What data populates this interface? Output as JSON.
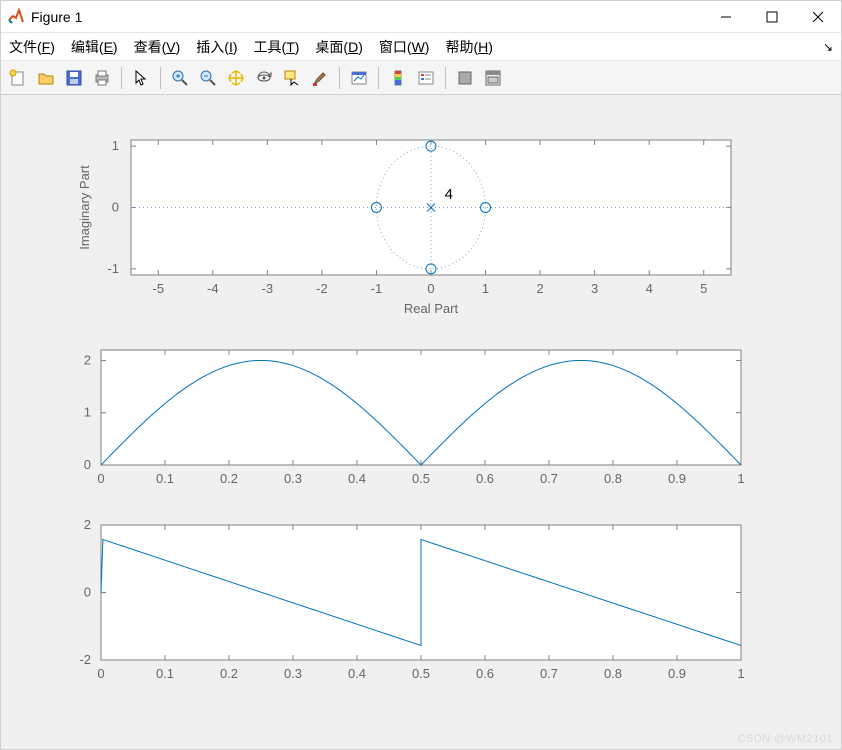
{
  "window": {
    "title": "Figure 1",
    "min_label": "–",
    "max_label": "□",
    "close_label": "×"
  },
  "menubar": {
    "items": [
      {
        "label_pre": "文件(",
        "label_u": "F",
        "label_post": ")"
      },
      {
        "label_pre": "编辑(",
        "label_u": "E",
        "label_post": ")"
      },
      {
        "label_pre": "查看(",
        "label_u": "V",
        "label_post": ")"
      },
      {
        "label_pre": "插入(",
        "label_u": "I",
        "label_post": ")"
      },
      {
        "label_pre": "工具(",
        "label_u": "T",
        "label_post": ")"
      },
      {
        "label_pre": "桌面(",
        "label_u": "D",
        "label_post": ")"
      },
      {
        "label_pre": "窗口(",
        "label_u": "W",
        "label_post": ")"
      },
      {
        "label_pre": "帮助(",
        "label_u": "H",
        "label_post": ")"
      }
    ],
    "overflow_arrow": "↘"
  },
  "toolbar_icons": [
    "new-figure-icon",
    "open-icon",
    "save-icon",
    "print-icon",
    "sep",
    "pointer-icon",
    "sep",
    "zoom-in-icon",
    "zoom-out-icon",
    "pan-icon",
    "rotate3d-icon",
    "data-cursor-icon",
    "brush-icon",
    "sep",
    "link-data-icon",
    "sep",
    "colorbar-icon",
    "legend-icon",
    "sep",
    "hide-tools-icon",
    "dock-icon"
  ],
  "plot_colors": {
    "background": "#f0f0f0",
    "axes_bg": "#ffffff",
    "axis_line": "#808080",
    "axis_text": "#666666",
    "series": "#0072bd",
    "dotted": "#7f9fcf"
  },
  "subplot1": {
    "type": "pole-zero",
    "xlabel": "Real Part",
    "ylabel": "Imaginary Part",
    "xlim": [
      -5.5,
      5.5
    ],
    "ylim": [
      -1.1,
      1.1
    ],
    "xticks": [
      -5,
      -4,
      -3,
      -2,
      -1,
      0,
      1,
      2,
      3,
      4,
      5
    ],
    "yticks": [
      -1,
      0,
      1
    ],
    "unit_circle_radius": 1,
    "zeros": [
      [
        -1,
        0
      ],
      [
        1,
        0
      ],
      [
        0,
        1
      ],
      [
        0,
        -1
      ]
    ],
    "poles": [
      [
        0,
        0
      ]
    ],
    "pole_multiplicity_label": "4",
    "pole_multiplicity_pos": [
      0.25,
      0.2
    ]
  },
  "subplot2": {
    "type": "line",
    "xlim": [
      0,
      1
    ],
    "ylim": [
      0,
      2.2
    ],
    "xticks": [
      0,
      0.1,
      0.2,
      0.3,
      0.4,
      0.5,
      0.6,
      0.7,
      0.8,
      0.9,
      1
    ],
    "yticks": [
      0,
      1,
      2
    ],
    "function": "abs(2*sin(2*pi*x))"
  },
  "subplot3": {
    "type": "line",
    "xlim": [
      0,
      1
    ],
    "ylim": [
      -2,
      2
    ],
    "xticks": [
      0,
      0.1,
      0.2,
      0.3,
      0.4,
      0.5,
      0.6,
      0.7,
      0.8,
      0.9,
      1
    ],
    "yticks": [
      -2,
      0,
      2
    ],
    "function": "pi/2 - 2*pi*x  (wrapped at 0.5)"
  },
  "watermark": "CSDN @WM2101"
}
